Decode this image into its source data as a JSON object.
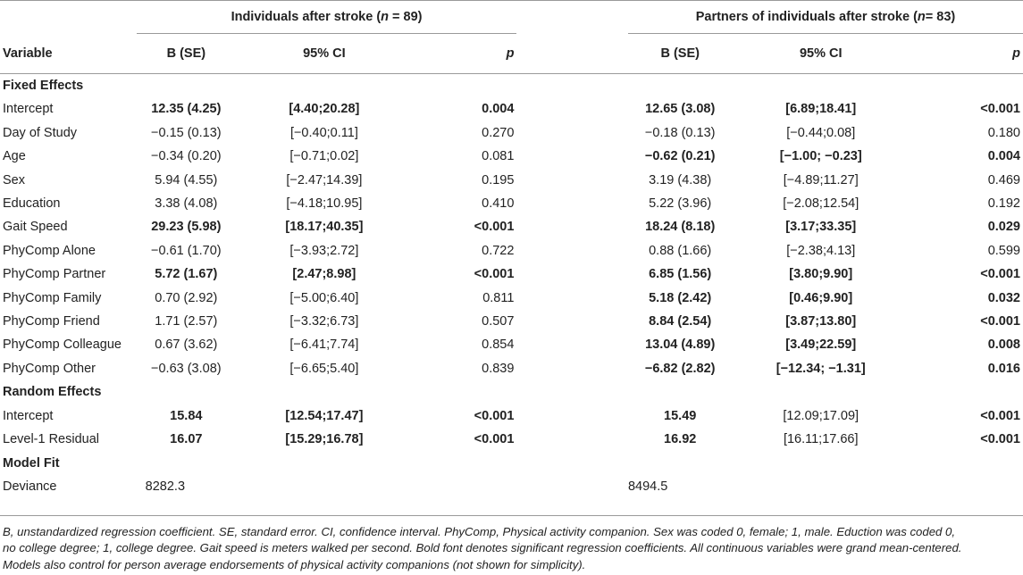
{
  "groups": {
    "g1_prefix": "Individuals after stroke (",
    "g1_n": "n",
    "g1_suffix": " = 89)",
    "g2_prefix": "Partners of individuals after stroke (",
    "g2_n": "n",
    "g2_suffix": "= 83)"
  },
  "columns": {
    "variable": "Variable",
    "b1": "B (SE)",
    "ci1": "95% CI",
    "p1": "p",
    "b2": "B (SE)",
    "ci2": "95% CI",
    "p2": "p"
  },
  "sections": {
    "fixed": "Fixed Effects",
    "random": "Random Effects",
    "model": "Model Fit"
  },
  "fixed_rows": [
    {
      "var": "Intercept",
      "b1": "12.35 (4.25)",
      "ci1": "[4.40;20.28]",
      "p1": "0.004",
      "b2": "12.65 (3.08)",
      "ci2": "[6.89;18.41]",
      "p2": "<0.001"
    },
    {
      "var": "Day of Study",
      "b1": "−0.15 (0.13)",
      "ci1": "[−0.40;0.11]",
      "p1": "0.270",
      "b2": "−0.18 (0.13)",
      "ci2": "[−0.44;0.08]",
      "p2": "0.180"
    },
    {
      "var": "Age",
      "b1": "−0.34 (0.20)",
      "ci1": "[−0.71;0.02]",
      "p1": "0.081",
      "b2": "−0.62 (0.21)",
      "ci2": "[−1.00; −0.23]",
      "p2": "0.004"
    },
    {
      "var": "Sex",
      "b1": "5.94 (4.55)",
      "ci1": "[−2.47;14.39]",
      "p1": "0.195",
      "b2": "3.19 (4.38)",
      "ci2": "[−4.89;11.27]",
      "p2": "0.469"
    },
    {
      "var": "Education",
      "b1": "3.38 (4.08)",
      "ci1": "[−4.18;10.95]",
      "p1": "0.410",
      "b2": "5.22 (3.96)",
      "ci2": "[−2.08;12.54]",
      "p2": "0.192"
    },
    {
      "var": "Gait Speed",
      "b1": "29.23 (5.98)",
      "ci1": "[18.17;40.35]",
      "p1": "<0.001",
      "b2": "18.24 (8.18)",
      "ci2": "[3.17;33.35]",
      "p2": "0.029"
    },
    {
      "var": "PhyComp Alone",
      "b1": "−0.61 (1.70)",
      "ci1": "[−3.93;2.72]",
      "p1": "0.722",
      "b2": "0.88 (1.66)",
      "ci2": "[−2.38;4.13]",
      "p2": "0.599"
    },
    {
      "var": "PhyComp Partner",
      "b1": "5.72 (1.67)",
      "ci1": "[2.47;8.98]",
      "p1": "<0.001",
      "b2": "6.85 (1.56)",
      "ci2": "[3.80;9.90]",
      "p2": "<0.001"
    },
    {
      "var": "PhyComp Family",
      "b1": "0.70 (2.92)",
      "ci1": "[−5.00;6.40]",
      "p1": "0.811",
      "b2": "5.18 (2.42)",
      "ci2": "[0.46;9.90]",
      "p2": "0.032"
    },
    {
      "var": "PhyComp Friend",
      "b1": "1.71 (2.57)",
      "ci1": "[−3.32;6.73]",
      "p1": "0.507",
      "b2": "8.84 (2.54)",
      "ci2": "[3.87;13.80]",
      "p2": "<0.001"
    },
    {
      "var": "PhyComp Colleague",
      "b1": "0.67 (3.62)",
      "ci1": "[−6.41;7.74]",
      "p1": "0.854",
      "b2": "13.04 (4.89)",
      "ci2": "[3.49;22.59]",
      "p2": "0.008"
    },
    {
      "var": "PhyComp Other",
      "b1": "−0.63 (3.08)",
      "ci1": "[−6.65;5.40]",
      "p1": "0.839",
      "b2": "−6.82 (2.82)",
      "ci2": "[−12.34; −1.31]",
      "p2": "0.016"
    }
  ],
  "random_rows": [
    {
      "var": "Intercept",
      "b1": "15.84",
      "ci1": "[12.54;17.47]",
      "p1": "<0.001",
      "b2": "15.49",
      "ci2": "[12.09;17.09]",
      "p2": "<0.001"
    },
    {
      "var": "Level-1 Residual",
      "b1": "16.07",
      "ci1": "[15.29;16.78]",
      "p1": "<0.001",
      "b2": "16.92",
      "ci2": "[16.11;17.66]",
      "p2": "<0.001"
    }
  ],
  "model_rows": [
    {
      "var": "Deviance",
      "b1": "8282.3",
      "b2": "8494.5"
    }
  ],
  "footnote": {
    "line1": "B, unstandardized regression coefficient. SE, standard error. CI, confidence interval. PhyComp, Physical activity companion. Sex was coded 0, female; 1, male. Eduction was coded 0,",
    "line2": "no college degree; 1, college degree. Gait speed is meters walked per second. Bold font denotes significant regression coefficients. All continuous variables were grand mean-centered.",
    "line3": "Models also control for person average endorsements of physical activity companions (not shown for simplicity)."
  }
}
